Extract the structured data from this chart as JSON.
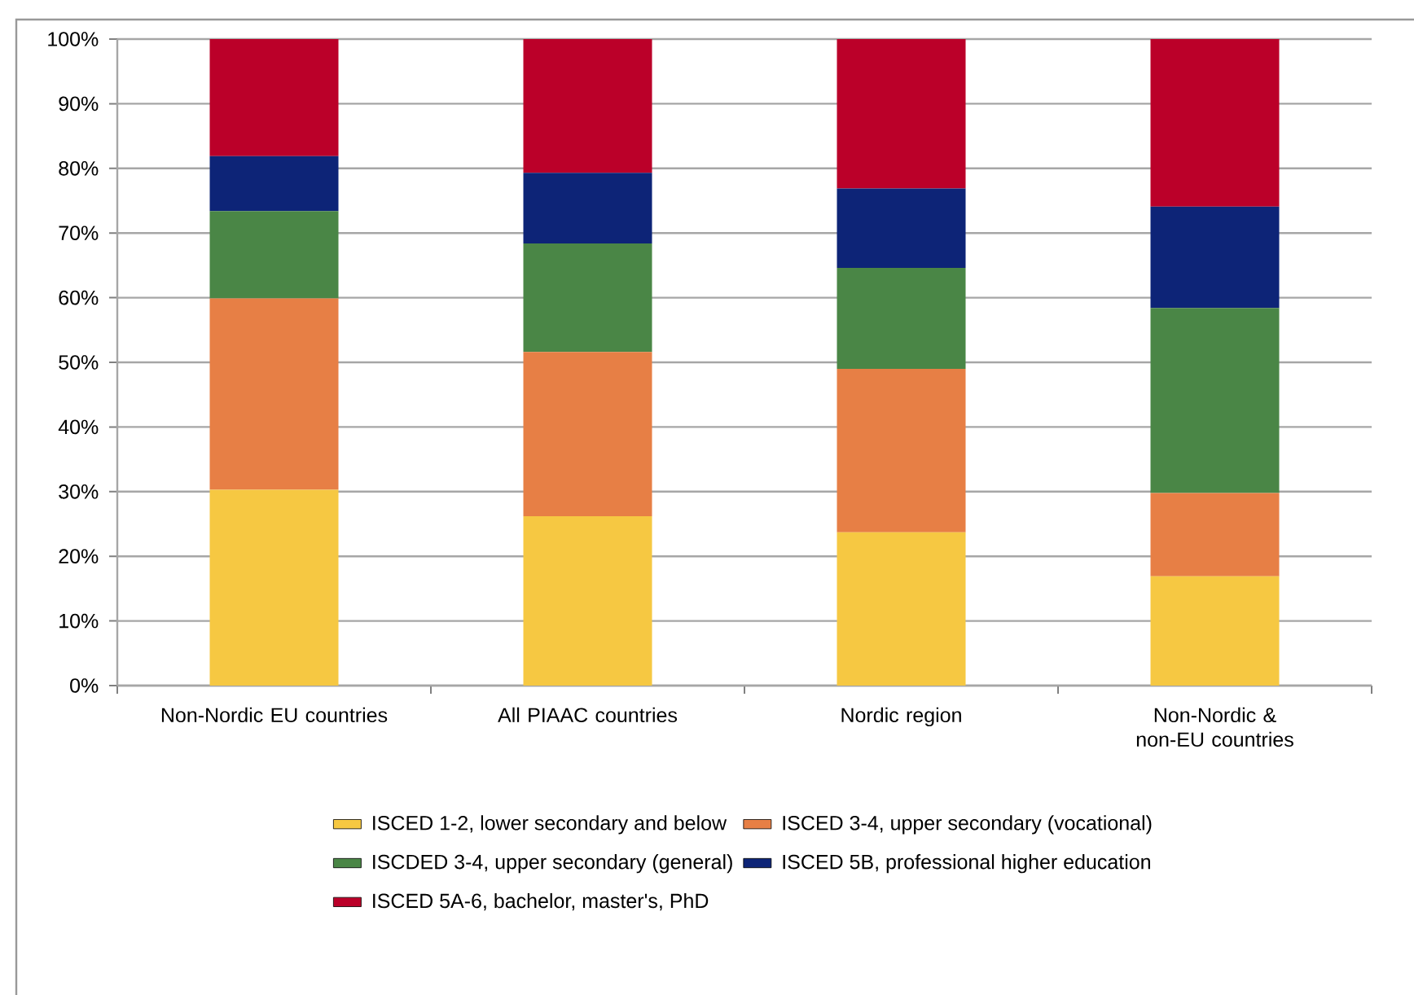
{
  "chart_data": {
    "type": "bar",
    "stacked": true,
    "categories": [
      "Non-Nordic EU countries",
      "All PIAAC countries",
      "Nordic region",
      "Non-Nordic & non-EU countries"
    ],
    "series": [
      {
        "name": "ISCED 1-2, lower secondary and below",
        "color": "#f6c842",
        "values": [
          30.3,
          26.2,
          23.7,
          16.9
        ]
      },
      {
        "name": "ISCED 3-4, upper secondary (vocational)",
        "color": "#e77f45",
        "values": [
          29.6,
          25.4,
          25.3,
          12.9
        ]
      },
      {
        "name": "ISCDED 3-4, upper secondary (general)",
        "color": "#4a8646",
        "values": [
          13.5,
          16.8,
          15.6,
          28.6
        ]
      },
      {
        "name": "ISCED 5B, professional higher education",
        "color": "#0d2477",
        "values": [
          8.5,
          10.9,
          12.3,
          15.7
        ]
      },
      {
        "name": "ISCED 5A-6, bachelor, master's, PhD",
        "color": "#bb0029",
        "values": [
          18.1,
          20.7,
          23.1,
          25.9
        ]
      }
    ],
    "ylim": [
      0,
      100
    ],
    "yticks": [
      {
        "value": 0,
        "label": "0%"
      },
      {
        "value": 10,
        "label": "10%"
      },
      {
        "value": 20,
        "label": "20%"
      },
      {
        "value": 30,
        "label": "30%"
      },
      {
        "value": 40,
        "label": "40%"
      },
      {
        "value": 50,
        "label": "50%"
      },
      {
        "value": 60,
        "label": "60%"
      },
      {
        "value": 70,
        "label": "70%"
      },
      {
        "value": 80,
        "label": "80%"
      },
      {
        "value": 90,
        "label": "90%"
      },
      {
        "value": 100,
        "label": "100%"
      }
    ],
    "grid": "y",
    "legend": "bottom"
  }
}
